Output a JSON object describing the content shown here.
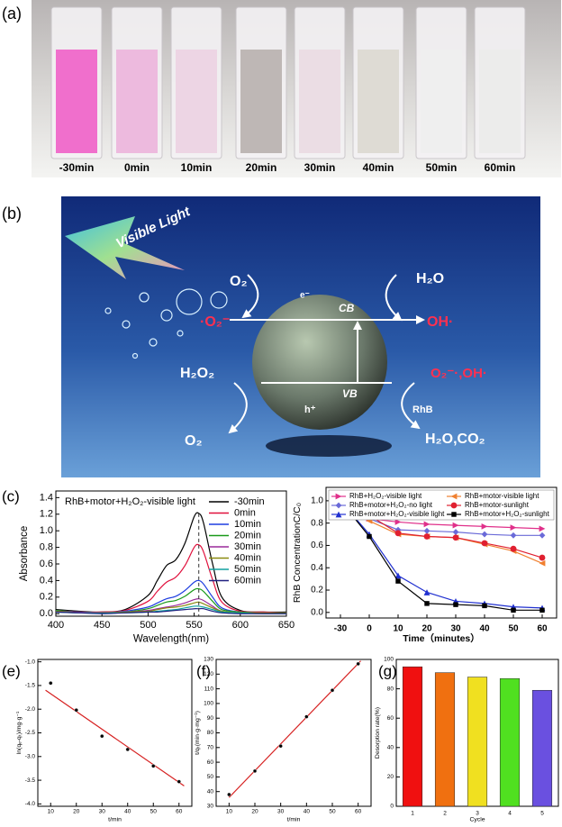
{
  "photo": {
    "label": "(a)",
    "labels": [
      "-30min",
      "0min",
      "10min",
      "20min",
      "30min",
      "40min",
      "50min",
      "60min"
    ]
  },
  "diagram": {
    "label": "(b)",
    "light": "Visible Light",
    "o2_top": "O₂",
    "superoxide": "·O₂⁻",
    "h2o": "H₂O",
    "oh": "OH·",
    "electron": "e⁻",
    "cb": "CB",
    "vb": "VB",
    "hole": "h⁺",
    "h2o2": "H₂O₂",
    "o2_bottom": "O₂",
    "radicals": "O₂⁻·,OH·",
    "rhb": "RhB",
    "products": "H₂O,CO₂"
  },
  "chart_data": [
    {
      "type": "line",
      "label": "(c)",
      "annotation": "RhB+motor+H₂O₂-visible light",
      "xlabel": "Wavelength(nm)",
      "ylabel": "Absorbance",
      "x": [
        400,
        425,
        450,
        475,
        500,
        510,
        520,
        530,
        540,
        550,
        555,
        560,
        570,
        580,
        600,
        625,
        650
      ],
      "xlim": [
        400,
        650
      ],
      "xticks": [
        400,
        450,
        500,
        550,
        600,
        650
      ],
      "ylim": [
        -0.03,
        1.48
      ],
      "yticks": [
        {
          "value": 0,
          "label": "0.0"
        },
        0.2,
        0.4,
        0.6,
        0.8,
        {
          "value": 1,
          "label": "1.0"
        },
        1.2,
        1.4
      ],
      "legend": "upper right",
      "series": [
        {
          "name": "-30min",
          "color": "#000000",
          "values": [
            0.05,
            0.03,
            0.02,
            0.05,
            0.22,
            0.4,
            0.58,
            0.65,
            0.85,
            1.17,
            1.21,
            1.1,
            0.6,
            0.2,
            0.04,
            0.02,
            0.02
          ]
        },
        {
          "name": "0min",
          "color": "#e0103c",
          "values": [
            0.04,
            0.02,
            0.02,
            0.04,
            0.15,
            0.27,
            0.38,
            0.44,
            0.58,
            0.8,
            0.83,
            0.75,
            0.41,
            0.14,
            0.03,
            0.02,
            0.01
          ]
        },
        {
          "name": "10min",
          "color": "#1f3fe0",
          "values": [
            0.04,
            0.02,
            0.01,
            0.03,
            0.08,
            0.13,
            0.18,
            0.21,
            0.28,
            0.38,
            0.4,
            0.36,
            0.2,
            0.07,
            0.02,
            0.01,
            0.01
          ]
        },
        {
          "name": "20min",
          "color": "#1a9a1a",
          "values": [
            0.04,
            0.02,
            0.01,
            0.02,
            0.06,
            0.1,
            0.14,
            0.16,
            0.21,
            0.29,
            0.3,
            0.27,
            0.15,
            0.05,
            0.02,
            0.01,
            0.01
          ]
        },
        {
          "name": "30min",
          "color": "#9a2a9a",
          "values": [
            0.03,
            0.02,
            0.01,
            0.02,
            0.04,
            0.06,
            0.08,
            0.1,
            0.13,
            0.17,
            0.18,
            0.16,
            0.09,
            0.03,
            0.01,
            0.01,
            0.01
          ]
        },
        {
          "name": "40min",
          "color": "#8a8a10",
          "values": [
            0.03,
            0.01,
            0.01,
            0.02,
            0.03,
            0.05,
            0.07,
            0.08,
            0.1,
            0.13,
            0.14,
            0.12,
            0.07,
            0.03,
            0.01,
            0.01,
            0.01
          ]
        },
        {
          "name": "50min",
          "color": "#10a0a0",
          "values": [
            0.02,
            0.01,
            0.01,
            0.01,
            0.02,
            0.03,
            0.04,
            0.05,
            0.07,
            0.09,
            0.09,
            0.08,
            0.05,
            0.02,
            0.01,
            0,
            0
          ]
        },
        {
          "name": "60min",
          "color": "#202080",
          "values": [
            0.02,
            0.01,
            0,
            0.01,
            0.02,
            0.02,
            0.03,
            0.04,
            0.05,
            0.06,
            0.06,
            0.06,
            0.03,
            0.01,
            0,
            0,
            0
          ]
        }
      ]
    },
    {
      "type": "line",
      "xlabel": "Time（minutes）",
      "ylabel": "RhB ConcentrationC/C₀",
      "categories": [
        "-30",
        "0",
        "10",
        "20",
        "30",
        "40",
        "50",
        "60"
      ],
      "ylim": [
        -0.05,
        1.12
      ],
      "yticks": [
        {
          "value": 0,
          "label": "0.0"
        },
        0.2,
        0.4,
        0.6,
        0.8,
        {
          "value": 1,
          "label": "1.0"
        }
      ],
      "legend": "upper center",
      "series": [
        {
          "name": "RhB+H₂O₂-visible light",
          "color": "#e0308a",
          "marker": "triangle-right",
          "values": [
            1.0,
            0.84,
            0.81,
            0.79,
            0.78,
            0.77,
            0.76,
            0.75
          ]
        },
        {
          "name": "RhB+motor+H₂O₂-no light",
          "color": "#6a6ad8",
          "marker": "diamond",
          "values": [
            1.0,
            0.84,
            0.74,
            0.73,
            0.72,
            0.7,
            0.69,
            0.69
          ]
        },
        {
          "name": "RhB+motor+H₂O₂-visible light",
          "color": "#2030d0",
          "marker": "triangle-up",
          "values": [
            1.0,
            0.7,
            0.33,
            0.18,
            0.1,
            0.08,
            0.05,
            0.04
          ]
        },
        {
          "name": "RhB+motor-visible light",
          "color": "#f08030",
          "marker": "triangle-left",
          "values": [
            1.0,
            0.82,
            0.7,
            0.68,
            0.67,
            0.61,
            0.55,
            0.44
          ]
        },
        {
          "name": "RhB+motor-sunlight",
          "color": "#e02030",
          "marker": "circle",
          "values": [
            1.0,
            0.87,
            0.71,
            0.68,
            0.67,
            0.62,
            0.57,
            0.49
          ]
        },
        {
          "name": "RhB+motor+H₂O₂-sunlight",
          "color": "#000000",
          "marker": "square",
          "values": [
            1.0,
            0.68,
            0.28,
            0.08,
            0.07,
            0.06,
            0.02,
            0.02
          ]
        }
      ]
    },
    {
      "type": "scatter",
      "label": "(e)",
      "xlabel": "t/min",
      "ylabel": "ln(qₑ-qₜ)/mg·g⁻¹",
      "x": [
        10,
        20,
        30,
        40,
        50,
        60
      ],
      "values": [
        -1.45,
        -2.02,
        -2.57,
        -2.85,
        -3.2,
        -3.53
      ],
      "color": "#000000",
      "xlim": [
        5,
        65
      ],
      "xticks": [
        10,
        20,
        30,
        40,
        50,
        60
      ],
      "ylim": [
        -4.05,
        -0.95
      ],
      "yticks": [
        {
          "value": -4,
          "label": "-4.0"
        },
        -3.5,
        {
          "value": -3,
          "label": "-3.0"
        },
        -2.5,
        {
          "value": -2,
          "label": "-2.0"
        },
        -1.5,
        {
          "value": -1,
          "label": "-1.0"
        }
      ],
      "trend": {
        "x": [
          8,
          62
        ],
        "values": [
          -1.6,
          -3.62
        ],
        "color": "#d62020"
      }
    },
    {
      "type": "scatter",
      "label": "(f)",
      "xlabel": "t/min",
      "ylabel": "t/qₜ(min·g·mg⁻¹)",
      "x": [
        10,
        20,
        30,
        40,
        50,
        60
      ],
      "values": [
        38,
        54,
        71,
        91,
        109,
        127
      ],
      "color": "#000000",
      "xlim": [
        5,
        65
      ],
      "xticks": [
        10,
        20,
        30,
        40,
        50,
        60
      ],
      "ylim": [
        30,
        130
      ],
      "yticks": [
        30,
        40,
        50,
        60,
        70,
        80,
        90,
        100,
        110,
        120,
        130
      ],
      "trend": {
        "x": [
          10,
          61
        ],
        "values": [
          36,
          129
        ],
        "color": "#d62020"
      }
    },
    {
      "type": "bar",
      "label": "(g)",
      "xlabel": "Cycle",
      "ylabel": "Desorption rate(%)",
      "categories": [
        "1",
        "2",
        "3",
        "4",
        "5"
      ],
      "values": [
        95,
        91,
        88,
        87,
        79
      ],
      "colors": [
        "#f01010",
        "#f07010",
        "#f0e020",
        "#50e020",
        "#6a50e0"
      ],
      "ylim": [
        0,
        100
      ],
      "yticks": [
        0,
        20,
        40,
        60,
        80,
        100
      ]
    }
  ]
}
